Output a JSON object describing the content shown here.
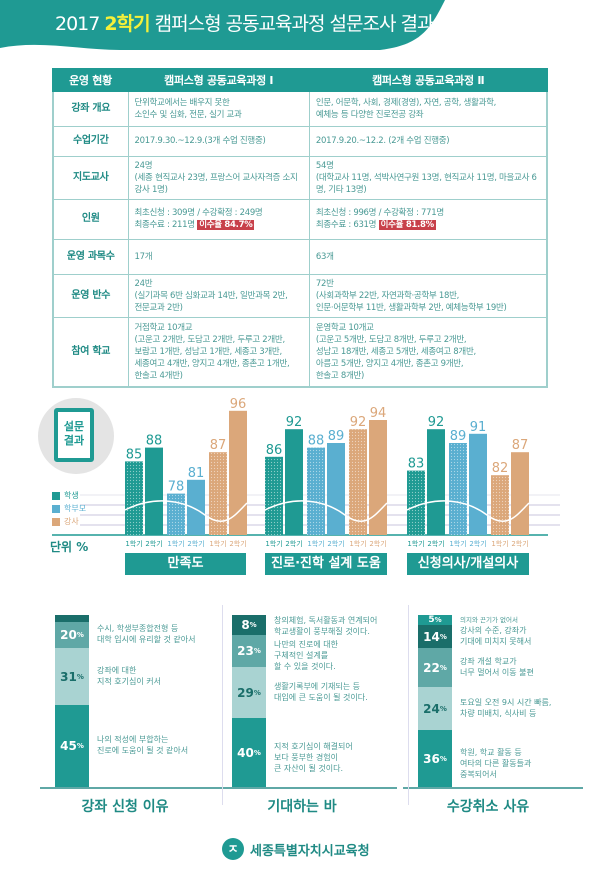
{
  "header": {
    "year": "2017",
    "semester": "2학기",
    "rest": "캠퍼스형 공동교육과정 설문조사 결과"
  },
  "table": {
    "headers": [
      "운영 현황",
      "캠퍼스형 공동교육과정 Ⅰ",
      "캠퍼스형 공동교육과정 Ⅱ"
    ],
    "rows": [
      {
        "label": "강좌 개요",
        "c1": "단위학교에서는 배우지 못한\n소인수 및 심화, 전문, 실기 교과",
        "c2": "인문, 어문학, 사회, 경제(경영), 자연, 공학, 생활과학,\n예체능 등 다양한 진로전공 강좌"
      },
      {
        "label": "수업기간",
        "c1": "2017.9.30.~12.9.(3개 수업 진행중)",
        "c2": "2017.9.20.~12.2. (2개 수업 진행중)"
      },
      {
        "label": "지도교사",
        "c1": "24명\n(세종 현직교사 23명, 프랑스어 교사자격증 소지 강사 1명)",
        "c2": "54명\n(대학교사 11명, 석박사연구원 13명, 현직교사 11명, 마을교사 6명, 기타 13명)"
      },
      {
        "label": "인원",
        "c1": "최초신청 : 309명 / 수강확정 : 249명",
        "c1b": "최종수료 : 211명",
        "c1r": "이수율 84.7%",
        "c2": "최초신청 : 996명 / 수강확정 : 771명",
        "c2b": "최종수료 : 631명",
        "c2r": "이수율 81.8%"
      },
      {
        "label": "운영 과목수",
        "c1": "17개",
        "c2": "63개"
      },
      {
        "label": "운영 반수",
        "c1": "24반\n(실기과목 6반 심화교과 14반, 일반과목 2반,\n 전문교과 2반)",
        "c2": "72반\n(사회과학부 22반, 자연과학·공학부 18반,\n 인문·어문학부 11반, 생활과학부 2반, 예체능학부 19반)"
      },
      {
        "label": "참여 학교",
        "c1": "거점학교 10개교\n(고운고 2개반, 도담고 2개반, 두루고 2개반,\n 보람고 1개반, 성남고 1개반, 세종고 3개반,\n 세종여고 4개반, 양지고 4개반, 종촌고 1개반,\n 한솔고 4개반)",
        "c2": "운영학교 10개교\n(고운고 5개반, 도담고 8개반, 두루고 2개반,\n 성남고 18개반, 세종고 5개반, 세종여고 8개반,\n 아름고 5개반, 양지고 4개반, 종촌고 9개반,\n 한솔고 8개반)"
      }
    ]
  },
  "badge": "설문\n결과",
  "unit": "단위 %",
  "chart_data": {
    "type": "bar",
    "categories": [
      "만족도",
      "진로·진학 설계 도움",
      "신청의사/개설의사"
    ],
    "sub_labels": [
      "1학기",
      "2학기"
    ],
    "series": [
      {
        "name": "학생",
        "color": "#1f9a93",
        "values": [
          [
            85,
            88
          ],
          [
            86,
            92
          ],
          [
            83,
            92
          ]
        ]
      },
      {
        "name": "학부모",
        "color": "#5aafd0",
        "values": [
          [
            78,
            81
          ],
          [
            88,
            89
          ],
          [
            89,
            91
          ]
        ]
      },
      {
        "name": "강사",
        "color": "#dba77a",
        "values": [
          [
            87,
            96
          ],
          [
            92,
            94
          ],
          [
            82,
            87
          ]
        ]
      }
    ],
    "legend": "left"
  },
  "stacks": [
    {
      "title": "강좌 신청 이유",
      "items": [
        {
          "pct": "",
          "text": ""
        },
        {
          "pct": "20",
          "text": "수시, 학생부종합전형 등\n대학 입시에 유리할 것 같아서"
        },
        {
          "pct": "31",
          "text": "강좌에 대한\n지적 호기심이 커서"
        },
        {
          "pct": "45",
          "text": "나의 적성에 부합하는\n진로에 도움이 될 것 같아서"
        }
      ]
    },
    {
      "title": "기대하는 바",
      "items": [
        {
          "pct": "8",
          "text": "창의체험, 독서활동과 연계되어\n학교생활이 풍부해질 것이다."
        },
        {
          "pct": "23",
          "text": "나만의 진로에 대한\n구체적인 설계를\n할 수 있을 것이다."
        },
        {
          "pct": "29",
          "text": "생활기록부에 기재되는 등\n대입에 큰 도움이 될 것이다."
        },
        {
          "pct": "40",
          "text": "지적 호기심이 해결되어\n보다 풍부한 경험이\n큰 자산이 될 것이다."
        }
      ]
    },
    {
      "title": "수강취소 사유",
      "items": [
        {
          "pct": "5",
          "text": "의지와 끈기가 없어서"
        },
        {
          "pct": "14",
          "text": "강사의 수준, 강좌가\n기대에 미치지 못해서"
        },
        {
          "pct": "22",
          "text": "강좌 개설 학교가\n너무 멀어서 이동 불편"
        },
        {
          "pct": "24",
          "text": "토요일 오전 9시 시간 빠름,\n차량 미배치, 식사비 등"
        },
        {
          "pct": "36",
          "text": "학원, 학교 활동 등\n여타의 다른 활동들과\n중복되어서"
        }
      ]
    }
  ],
  "pct_sign": "%",
  "footer": {
    "org": "세종특별자치시교육청"
  }
}
